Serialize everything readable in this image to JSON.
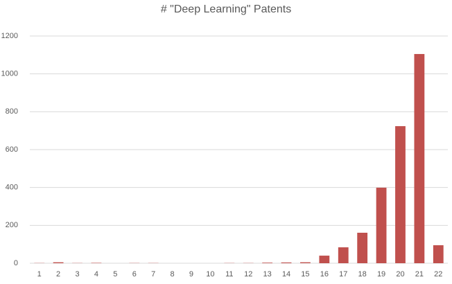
{
  "chart_data": {
    "type": "bar",
    "title": "# \"Deep Learning\" Patents",
    "categories": [
      "1",
      "2",
      "3",
      "4",
      "5",
      "6",
      "7",
      "8",
      "9",
      "10",
      "11",
      "12",
      "13",
      "14",
      "15",
      "16",
      "17",
      "18",
      "19",
      "20",
      "21",
      "22"
    ],
    "values": [
      1,
      5,
      1,
      2,
      0,
      1,
      1,
      0,
      0,
      0,
      1,
      1,
      3,
      4,
      5,
      40,
      84,
      161,
      399,
      724,
      1105,
      95
    ],
    "color": "#c0504d",
    "ylim": [
      0,
      1200
    ],
    "yticks": [
      0,
      200,
      400,
      600,
      800,
      1000,
      1200
    ],
    "grid": true
  }
}
